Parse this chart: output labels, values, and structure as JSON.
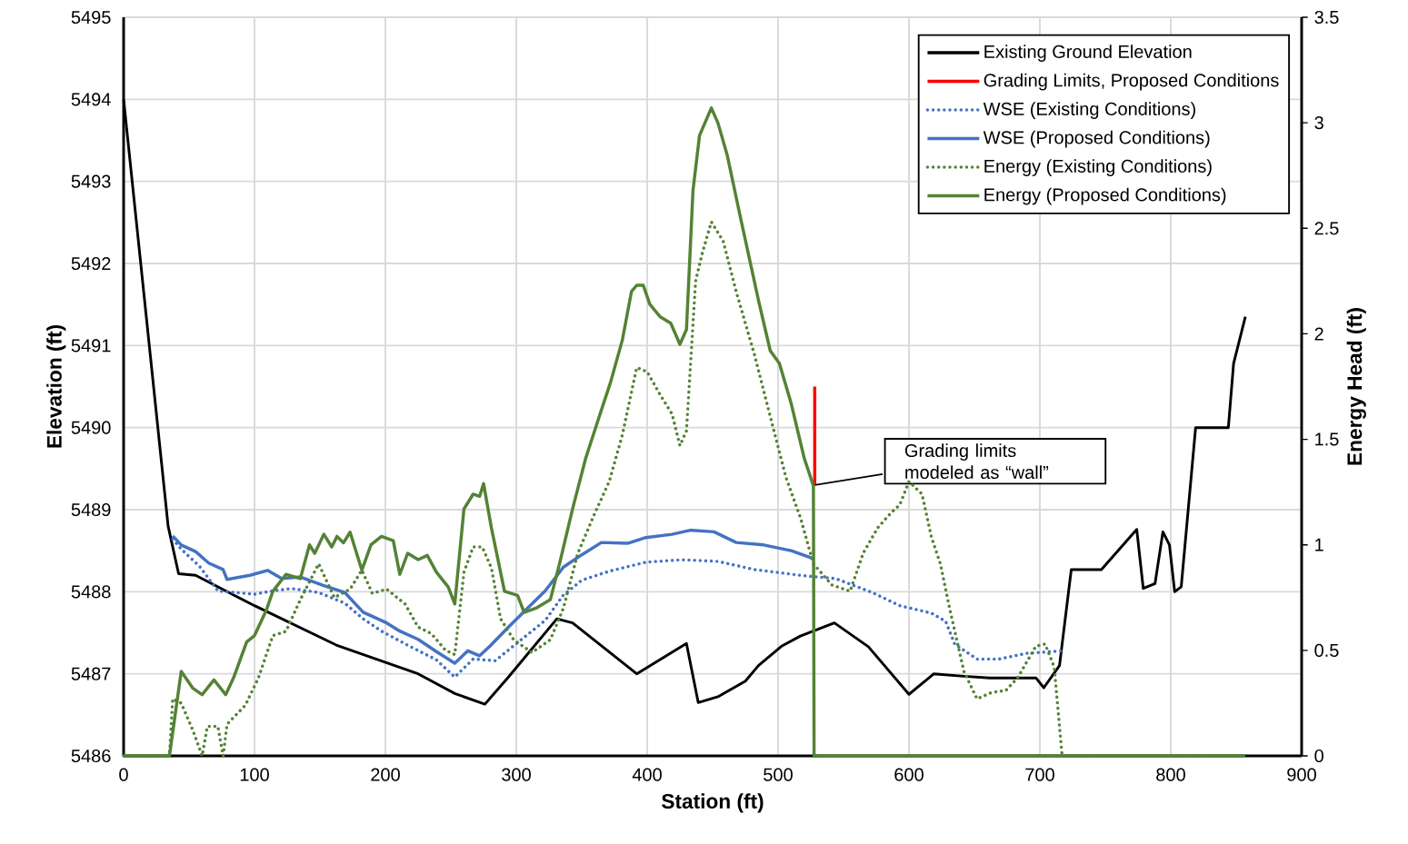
{
  "chart_data": {
    "type": "line",
    "xlabel": "Station (ft)",
    "ylabel": "Elevation (ft)",
    "y2label": "Energy Head (ft)",
    "xlim": [
      0,
      900
    ],
    "xticks": [
      0,
      100,
      200,
      300,
      400,
      500,
      600,
      700,
      800,
      900
    ],
    "ylim": [
      5486,
      5495
    ],
    "yticks": [
      5486,
      5487,
      5488,
      5489,
      5490,
      5491,
      5492,
      5493,
      5494,
      5495
    ],
    "y2lim": [
      0,
      3.5
    ],
    "y2ticks": [
      0,
      0.5,
      1,
      1.5,
      2,
      2.5,
      3,
      3.5
    ],
    "grid": true,
    "legend": "top right",
    "annotations": [
      {
        "text": "Grading limits modeled as “wall”",
        "x": 528,
        "y": 5489.3
      }
    ],
    "series": [
      {
        "name": "Existing Ground Elevation",
        "color": "#000000",
        "line_style": "solid",
        "axis": "y",
        "x": [
          0,
          34,
          42,
          55,
          100,
          162.5,
          225,
          253,
          276,
          294,
          331,
          343,
          392,
          430,
          439,
          454,
          475,
          485,
          503,
          517,
          543,
          569,
          600,
          619,
          642,
          662,
          697,
          703,
          715,
          724,
          747,
          774,
          779,
          788,
          794,
          799,
          803,
          808,
          819,
          844,
          848,
          857
        ],
        "values": [
          5494.0,
          5488.8,
          5488.22,
          5488.2,
          5487.83,
          5487.35,
          5487.0,
          5486.76,
          5486.63,
          5486.96,
          5487.67,
          5487.62,
          5487.0,
          5487.37,
          5486.65,
          5486.72,
          5486.91,
          5487.1,
          5487.34,
          5487.46,
          5487.62,
          5487.33,
          5486.75,
          5487.0,
          5486.97,
          5486.95,
          5486.95,
          5486.83,
          5487.1,
          5488.27,
          5488.27,
          5488.76,
          5488.04,
          5488.1,
          5488.73,
          5488.57,
          5488.0,
          5488.06,
          5490.0,
          5490.0,
          5490.78,
          5491.35
        ]
      },
      {
        "name": "Grading Limits, Proposed Conditions",
        "color": "#ff0000",
        "line_style": "solid",
        "axis": "y",
        "x": [
          528,
          528
        ],
        "values": [
          5489.3,
          5490.5
        ]
      },
      {
        "name": "WSE (Existing Conditions)",
        "color": "#4472c4",
        "line_style": "dotted",
        "axis": "y",
        "x": [
          37.5,
          44,
          58,
          72,
          100,
          114,
          128,
          149,
          169,
          183,
          197,
          218,
          239,
          253,
          267,
          284,
          301,
          322,
          336,
          350,
          371,
          399,
          426,
          454,
          482,
          517,
          544,
          572,
          593,
          617,
          628,
          635,
          652,
          669,
          690,
          717
        ],
        "values": [
          5488.64,
          5488.52,
          5488.31,
          5488.01,
          5487.97,
          5488.01,
          5488.04,
          5487.99,
          5487.86,
          5487.67,
          5487.52,
          5487.34,
          5487.17,
          5486.96,
          5487.18,
          5487.16,
          5487.38,
          5487.65,
          5487.96,
          5488.14,
          5488.25,
          5488.36,
          5488.39,
          5488.37,
          5488.27,
          5488.2,
          5488.16,
          5487.99,
          5487.83,
          5487.74,
          5487.64,
          5487.36,
          5487.18,
          5487.18,
          5487.25,
          5487.28
        ]
      },
      {
        "name": "WSE (Proposed Conditions)",
        "color": "#4472c4",
        "line_style": "solid",
        "axis": "y",
        "x": [
          37.5,
          44,
          55,
          65,
          76,
          79,
          96.5,
          110,
          121,
          135,
          152,
          169,
          183,
          201,
          211,
          225,
          239,
          253,
          263,
          272,
          280,
          294,
          308,
          322,
          336,
          350,
          365,
          385,
          399,
          419,
          433,
          451,
          468,
          489,
          510,
          526
        ],
        "values": [
          5488.68,
          5488.57,
          5488.49,
          5488.35,
          5488.27,
          5488.15,
          5488.2,
          5488.26,
          5488.16,
          5488.18,
          5488.08,
          5487.99,
          5487.75,
          5487.62,
          5487.52,
          5487.42,
          5487.27,
          5487.13,
          5487.28,
          5487.22,
          5487.34,
          5487.57,
          5487.79,
          5488.01,
          5488.3,
          5488.45,
          5488.6,
          5488.59,
          5488.66,
          5488.7,
          5488.75,
          5488.73,
          5488.6,
          5488.57,
          5488.5,
          5488.41
        ]
      },
      {
        "name": "Energy (Existing Conditions)",
        "color": "#548235",
        "line_style": "dotted",
        "axis": "y2",
        "x": [
          0,
          35,
          37.5,
          44,
          53,
          60,
          64,
          72,
          76,
          79,
          93,
          103,
          114,
          124,
          135,
          149,
          161,
          173,
          182,
          190,
          201,
          215,
          225,
          235,
          246,
          253,
          260,
          267,
          274,
          281,
          288,
          298,
          312,
          326,
          336,
          347,
          360,
          371,
          381,
          392,
          400,
          410,
          419,
          425,
          430,
          437,
          442,
          449,
          458,
          468,
          482,
          496,
          506,
          517,
          527,
          541,
          555,
          565,
          576,
          586,
          593,
          600,
          610,
          617,
          624,
          631,
          642,
          652,
          663,
          674,
          683,
          697,
          704,
          711,
          717,
          857
        ],
        "values": [
          0,
          0,
          0.27,
          0.25,
          0.12,
          0,
          0.14,
          0.14,
          0,
          0.15,
          0.24,
          0.37,
          0.57,
          0.59,
          0.74,
          0.91,
          0.75,
          0.79,
          0.88,
          0.77,
          0.79,
          0.72,
          0.61,
          0.58,
          0.5,
          0.48,
          0.87,
          0.99,
          0.99,
          0.89,
          0.65,
          0.55,
          0.49,
          0.55,
          0.7,
          0.96,
          1.15,
          1.3,
          1.52,
          1.84,
          1.82,
          1.71,
          1.62,
          1.47,
          1.54,
          2.25,
          2.38,
          2.53,
          2.44,
          2.2,
          1.9,
          1.56,
          1.32,
          1.13,
          0.91,
          0.81,
          0.78,
          0.96,
          1.08,
          1.15,
          1.19,
          1.3,
          1.24,
          1.04,
          0.91,
          0.7,
          0.4,
          0.27,
          0.3,
          0.31,
          0.37,
          0.52,
          0.53,
          0.42,
          0,
          0
        ]
      },
      {
        "name": "Energy (Proposed Conditions)",
        "color": "#548235",
        "line_style": "solid",
        "axis": "y2",
        "x": [
          0,
          35,
          44,
          53,
          60,
          69,
          78,
          84,
          94,
          100,
          109,
          114,
          124,
          135,
          142,
          146,
          153,
          159,
          163,
          168,
          173,
          182,
          189,
          197,
          206,
          211,
          217,
          225,
          232,
          239,
          248,
          253,
          260,
          267,
          272,
          275,
          281,
          291,
          301,
          306,
          315,
          326,
          333,
          343,
          353,
          364,
          372,
          381,
          388,
          392,
          397,
          402,
          410,
          418,
          425,
          430,
          435,
          440,
          449,
          454,
          461,
          472,
          485,
          494,
          501,
          510,
          520,
          527,
          527.5,
          857
        ],
        "values": [
          0,
          0,
          0.4,
          0.32,
          0.29,
          0.36,
          0.29,
          0.37,
          0.54,
          0.57,
          0.69,
          0.78,
          0.86,
          0.84,
          1.0,
          0.96,
          1.05,
          0.99,
          1.04,
          1.01,
          1.06,
          0.88,
          1.0,
          1.04,
          1.02,
          0.86,
          0.96,
          0.93,
          0.95,
          0.87,
          0.8,
          0.72,
          1.17,
          1.24,
          1.23,
          1.29,
          1.08,
          0.78,
          0.76,
          0.68,
          0.7,
          0.74,
          0.91,
          1.17,
          1.41,
          1.62,
          1.77,
          1.97,
          2.2,
          2.23,
          2.23,
          2.14,
          2.08,
          2.05,
          1.95,
          2.02,
          2.68,
          2.94,
          3.07,
          3.0,
          2.85,
          2.53,
          2.16,
          1.92,
          1.86,
          1.67,
          1.41,
          1.28,
          0,
          0
        ]
      }
    ]
  }
}
